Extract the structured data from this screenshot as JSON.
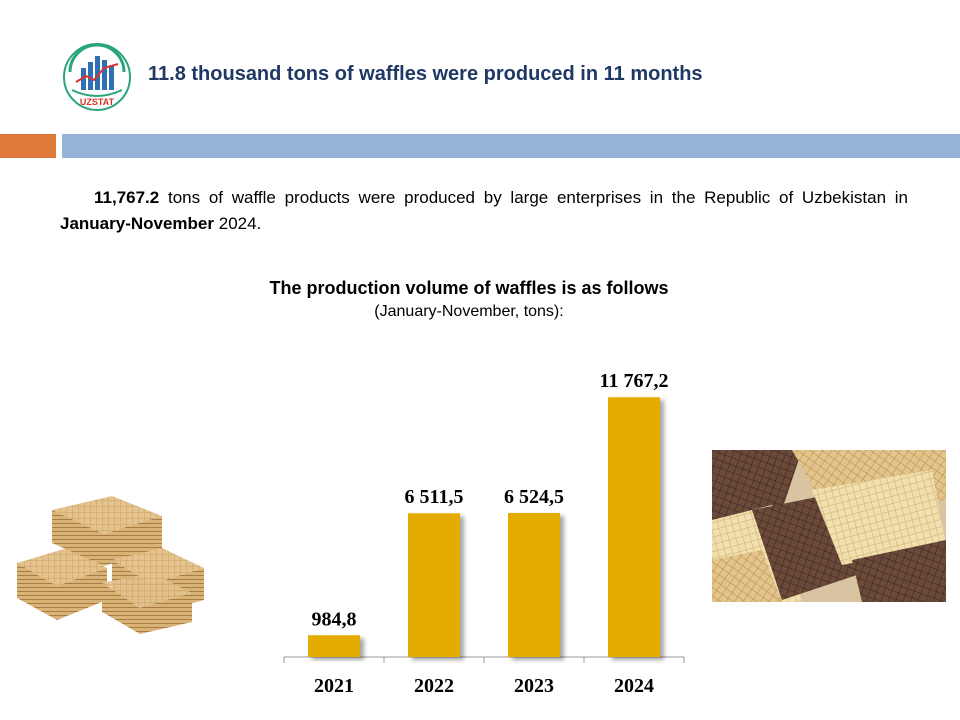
{
  "header": {
    "logo_text": "UZSTAT",
    "title": "11.8 thousand tons of waffles were produced in 11 months"
  },
  "intro": {
    "amount": "11,767.2",
    "text_a": " tons of waffle products were produced by large enterprises in the Republic of Uzbekistan  in ",
    "period": "January-November",
    "text_b": " 2024."
  },
  "colors": {
    "accent_orange": "#e07a3a",
    "accent_blue": "#95b3d7",
    "bar_gold": "#e5ac00",
    "title_navy": "#1f3864"
  },
  "chart_data": {
    "type": "bar",
    "title": "The production volume of waffles is as follows",
    "subtitle": "(January-November,  tons):",
    "categories": [
      "2021",
      "2022",
      "2023",
      "2024"
    ],
    "values": [
      984.8,
      6511.5,
      6524.5,
      11767.2
    ],
    "data_labels": [
      "984,8",
      "6 511,5",
      "6 524,5",
      "11 767,2"
    ],
    "ylim": [
      0,
      13000
    ],
    "grid": false,
    "legend": "none"
  }
}
